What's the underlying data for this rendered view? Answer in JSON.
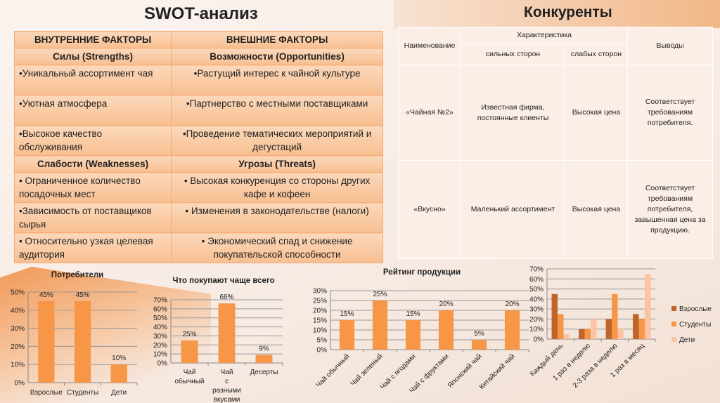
{
  "swot": {
    "title": "SWOT-анализ",
    "internal_header": "ВНУТРЕННИЕ ФАКТОРЫ",
    "external_header": "ВНЕШНИЕ ФАКТОРЫ",
    "strengths_header": "Силы (Strengths)",
    "opportunities_header": "Возможности (Opportunities)",
    "weaknesses_header": "Слабости (Weaknesses)",
    "threats_header": "Угрозы (Threats)",
    "strengths": [
      "•Уникальный ассортимент чая",
      "•Уютная атмосфера",
      "•Высокое качество обслуживания"
    ],
    "opportunities": [
      "•Растущий интерес к чайной культуре",
      "•Партнерство с местными поставщиками",
      "•Проведение тематических мероприятий и дегустаций"
    ],
    "weaknesses": [
      "• Ограниченное количество посадочных мест",
      "•Зависимость от поставщиков сырья",
      "• Относительно узкая целевая аудитория"
    ],
    "threats": [
      "• Высокая конкуренция со стороны других кафе и кофеен",
      "• Изменения в законодательстве (налоги)",
      "• Экономический спад и снижение покупательской способности"
    ]
  },
  "competitors": {
    "title": "Конкуренты",
    "headers": {
      "name": "Наименование",
      "characteristic": "Характеристика",
      "strong": "сильных сторон",
      "weak": "слабых сторон",
      "conclusions": "Выводы"
    },
    "rows": [
      {
        "name": "«Чайная №2»",
        "strong": "Известная фирма, постоянные клиенты",
        "weak": "Высокая цена",
        "conclusion": "Соответствует требованиям потребителя."
      },
      {
        "name": "«Вкусно»",
        "strong": "Маленький ассортимент",
        "weak": "Высокая цена",
        "conclusion": "Соответствует требованиям потребителя, завышенная цена за продукцию."
      }
    ]
  },
  "colors": {
    "bar": "#f79646",
    "adults": "#c0652a",
    "students": "#f79646",
    "children": "#fbc4a4"
  },
  "chart_data": [
    {
      "type": "bar",
      "title": "Потребители",
      "categories": [
        "Взрослые",
        "Студенты",
        "Дети"
      ],
      "values": [
        45,
        45,
        10
      ],
      "labels": [
        "45%",
        "45%",
        "10%"
      ],
      "ylim": [
        0,
        50
      ],
      "ticks": [
        "0%",
        "10%",
        "20%",
        "30%",
        "40%",
        "50%"
      ],
      "grid": true
    },
    {
      "type": "bar",
      "title": "Что покупают чаще всего",
      "categories": [
        "Чай обычный",
        "Чай с разными вкусами",
        "Десерты"
      ],
      "values": [
        25,
        66,
        9
      ],
      "labels": [
        "25%",
        "66%",
        "9%"
      ],
      "ylim": [
        0,
        70
      ],
      "ticks": [
        "0%",
        "10%",
        "20%",
        "30%",
        "40%",
        "50%",
        "60%",
        "70%"
      ],
      "grid": true
    },
    {
      "type": "bar",
      "title": "Рейтинг продукции",
      "categories": [
        "Чай обычный",
        "Чай зеленый",
        "Чай с ягодами",
        "Чай с фруктами",
        "Японский чай",
        "Китайский чай"
      ],
      "values": [
        15,
        25,
        15,
        20,
        5,
        20
      ],
      "labels": [
        "15%",
        "25%",
        "15%",
        "20%",
        "5%",
        "20%"
      ],
      "ylim": [
        0,
        30
      ],
      "ticks": [
        "0%",
        "5%",
        "10%",
        "15%",
        "20%",
        "25%",
        "30%"
      ],
      "grid": true
    },
    {
      "type": "bar",
      "title": "",
      "categories": [
        "Каждый день",
        "1 раз в неделю",
        "2-3 раза в неделю",
        "1 раз в месяц"
      ],
      "series": [
        {
          "name": "Взрослые",
          "values": [
            45,
            10,
            20,
            25
          ]
        },
        {
          "name": "Студенты",
          "values": [
            25,
            10,
            45,
            20
          ]
        },
        {
          "name": "Дети",
          "values": [
            5,
            20,
            10,
            65
          ]
        }
      ],
      "ylim": [
        0,
        70
      ],
      "ticks": [
        "0%",
        "10%",
        "20%",
        "30%",
        "40%",
        "50%",
        "60%",
        "70%"
      ],
      "grid": true,
      "legend": "right"
    }
  ]
}
